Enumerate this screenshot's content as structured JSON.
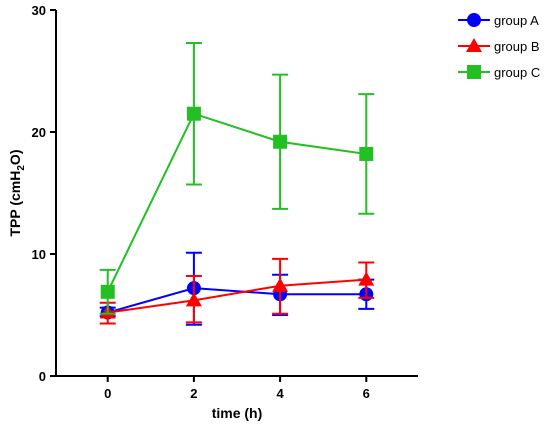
{
  "chart_data": {
    "type": "line",
    "xlabel": "time (h)",
    "ylabel_main": "TPP (cmH",
    "ylabel_sub": "2",
    "ylabel_end": "O)",
    "x": [
      0,
      2,
      4,
      6
    ],
    "xlim": [
      -1.2,
      7.2
    ],
    "ylim": [
      0,
      30
    ],
    "x_ticks": [
      "0",
      "2",
      "4",
      "6"
    ],
    "y_ticks": [
      "0",
      "10",
      "20",
      "30"
    ],
    "legend_position": "top-right",
    "series": [
      {
        "name": "group A",
        "color": "#0000ff",
        "marker": "circle",
        "values": [
          5.2,
          7.2,
          6.7,
          6.7
        ],
        "err_low": [
          4.9,
          4.2,
          5.0,
          5.5
        ],
        "err_high": [
          5.6,
          10.1,
          8.3,
          7.9
        ]
      },
      {
        "name": "group B",
        "color": "#ff0000",
        "marker": "triangle",
        "values": [
          5.2,
          6.2,
          7.4,
          7.9
        ],
        "err_low": [
          4.3,
          4.4,
          5.1,
          6.4
        ],
        "err_high": [
          6.0,
          8.2,
          9.6,
          9.3
        ]
      },
      {
        "name": "group C",
        "color": "#22c022",
        "marker": "square",
        "values": [
          6.9,
          21.5,
          19.2,
          18.2
        ],
        "err_low": [
          5.1,
          15.7,
          13.7,
          13.3
        ],
        "err_high": [
          8.7,
          27.3,
          24.7,
          23.1
        ]
      }
    ]
  }
}
